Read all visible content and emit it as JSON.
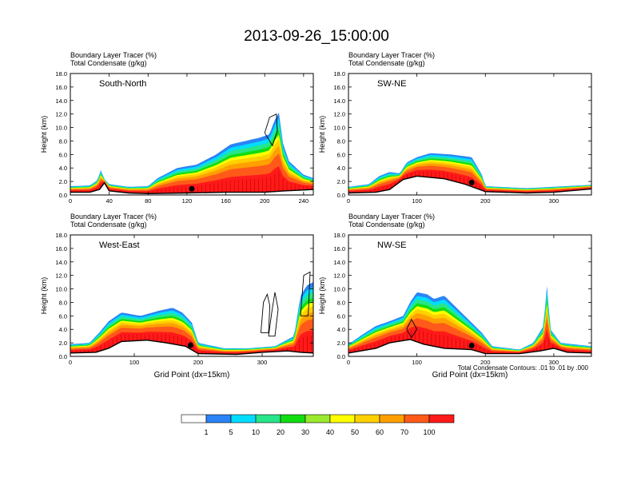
{
  "figure": {
    "title": "2013-09-26_15:00:00",
    "condensate_note": "Total Condensate Contours: .01 to .01 by .000"
  },
  "colors": {
    "scale": [
      "#ffffff",
      "#2b83f6",
      "#00ddff",
      "#27e68a",
      "#11dd11",
      "#9be92e",
      "#ffff00",
      "#ffd000",
      "#ffa000",
      "#ff5a1a",
      "#ff1a1a"
    ],
    "terrain": "#000000",
    "contour": "#000000"
  },
  "colorbar": {
    "labels": [
      "1",
      "5",
      "10",
      "20",
      "30",
      "40",
      "50",
      "60",
      "70",
      "100"
    ]
  },
  "chart_data": [
    {
      "type": "heatmap",
      "name": "South-North",
      "subtitle_left": "Boundary Layer Tracer   (%)",
      "subtitle_left2": "Total Condensate   (g/kg)",
      "ylabel": "Height (km)",
      "xlabel": "",
      "ylim": [
        0,
        18
      ],
      "yticks": [
        "0.0",
        "2.0",
        "4.0",
        "6.0",
        "8.0",
        "10.0",
        "12.0",
        "14.0",
        "16.0",
        "18.0"
      ],
      "xlim": [
        0,
        250
      ],
      "xticks": [
        "0",
        "40",
        "80",
        "120",
        "160",
        "200",
        "240"
      ],
      "terrain": [
        [
          0,
          0.4
        ],
        [
          20,
          0.4
        ],
        [
          30,
          0.8
        ],
        [
          35,
          1.8
        ],
        [
          40,
          0.6
        ],
        [
          60,
          0.3
        ],
        [
          80,
          0.2
        ],
        [
          120,
          0.3
        ],
        [
          160,
          0.4
        ],
        [
          200,
          0.4
        ],
        [
          220,
          0.6
        ],
        [
          250,
          0.8
        ]
      ],
      "cloud_top": [
        [
          0,
          1.3
        ],
        [
          20,
          1.4
        ],
        [
          28,
          2.2
        ],
        [
          32,
          4.0
        ],
        [
          34,
          2.5
        ],
        [
          40,
          1.6
        ],
        [
          60,
          1.2
        ],
        [
          80,
          1.3
        ],
        [
          90,
          2.5
        ],
        [
          110,
          4.0
        ],
        [
          130,
          4.5
        ],
        [
          150,
          6.0
        ],
        [
          165,
          7.5
        ],
        [
          180,
          8.0
        ],
        [
          195,
          8.5
        ],
        [
          205,
          9.0
        ],
        [
          210,
          11.0
        ],
        [
          215,
          12.3
        ],
        [
          218,
          8.0
        ],
        [
          225,
          5.0
        ],
        [
          240,
          3.0
        ],
        [
          250,
          2.5
        ]
      ],
      "marker_x": 125,
      "contours": [
        [
          [
            200,
            9.2
          ],
          [
            205,
            11.5
          ],
          [
            212,
            12.0
          ],
          [
            213,
            9.5
          ],
          [
            208,
            7.3
          ],
          [
            200,
            9.2
          ]
        ]
      ]
    },
    {
      "type": "heatmap",
      "name": "SW-NE",
      "subtitle_left": "Boundary Layer Tracer   (%)",
      "subtitle_left2": "Total Condensate   (g/kg)",
      "ylabel": "Height (km)",
      "xlabel": "",
      "ylim": [
        0,
        18
      ],
      "yticks": [
        "0.0",
        "2.0",
        "4.0",
        "6.0",
        "8.0",
        "10.0",
        "12.0",
        "14.0",
        "16.0",
        "18.0"
      ],
      "xlim": [
        0,
        355
      ],
      "xticks": [
        "0",
        "100",
        "200",
        "300"
      ],
      "terrain": [
        [
          0,
          0.3
        ],
        [
          40,
          0.4
        ],
        [
          60,
          0.8
        ],
        [
          80,
          2.3
        ],
        [
          100,
          2.8
        ],
        [
          140,
          2.4
        ],
        [
          170,
          1.6
        ],
        [
          200,
          0.5
        ],
        [
          260,
          0.3
        ],
        [
          300,
          0.4
        ],
        [
          355,
          0.9
        ]
      ],
      "cloud_top": [
        [
          0,
          1.2
        ],
        [
          30,
          1.6
        ],
        [
          45,
          2.8
        ],
        [
          60,
          3.4
        ],
        [
          75,
          3.2
        ],
        [
          85,
          4.8
        ],
        [
          100,
          5.6
        ],
        [
          120,
          6.2
        ],
        [
          150,
          6.0
        ],
        [
          180,
          5.6
        ],
        [
          195,
          3.0
        ],
        [
          200,
          1.3
        ],
        [
          260,
          1.0
        ],
        [
          355,
          1.5
        ]
      ],
      "marker_x": 180,
      "contours": []
    },
    {
      "type": "heatmap",
      "name": "West-East",
      "subtitle_left": "Boundary Layer Tracer   (%)",
      "subtitle_left2": "Total Condensate   (g/kg)",
      "ylabel": "Height (km)",
      "xlabel": "Grid Point (dx=15km)",
      "ylim": [
        0,
        18
      ],
      "yticks": [
        "0.0",
        "2.0",
        "4.0",
        "6.0",
        "8.0",
        "10.0",
        "12.0",
        "14.0",
        "16.0",
        "18.0"
      ],
      "xlim": [
        0,
        380
      ],
      "xticks": [
        "0",
        "100",
        "200",
        "300"
      ],
      "terrain": [
        [
          0,
          0.5
        ],
        [
          40,
          0.6
        ],
        [
          60,
          1.2
        ],
        [
          80,
          2.2
        ],
        [
          120,
          2.4
        ],
        [
          150,
          2.0
        ],
        [
          180,
          1.5
        ],
        [
          200,
          0.4
        ],
        [
          260,
          0.3
        ],
        [
          300,
          0.6
        ],
        [
          340,
          0.8
        ],
        [
          360,
          0.6
        ],
        [
          380,
          0.5
        ]
      ],
      "cloud_top": [
        [
          0,
          1.8
        ],
        [
          30,
          2.0
        ],
        [
          45,
          3.5
        ],
        [
          60,
          5.2
        ],
        [
          80,
          6.5
        ],
        [
          110,
          6.0
        ],
        [
          140,
          6.8
        ],
        [
          160,
          7.2
        ],
        [
          175,
          6.5
        ],
        [
          190,
          5.0
        ],
        [
          200,
          2.0
        ],
        [
          240,
          1.2
        ],
        [
          280,
          1.2
        ],
        [
          320,
          1.5
        ],
        [
          350,
          3.0
        ],
        [
          360,
          9.0
        ],
        [
          370,
          10.5
        ],
        [
          380,
          11.0
        ]
      ],
      "marker_x": 188,
      "contours": [
        [
          [
            298,
            3.5
          ],
          [
            302,
            8.0
          ],
          [
            308,
            9.2
          ],
          [
            312,
            7.5
          ],
          [
            310,
            3.5
          ],
          [
            298,
            3.5
          ]
        ],
        [
          [
            310,
            3.0
          ],
          [
            315,
            6.5
          ],
          [
            320,
            9.5
          ],
          [
            325,
            7.0
          ],
          [
            320,
            3.0
          ],
          [
            310,
            3.0
          ]
        ],
        [
          [
            360,
            6.0
          ],
          [
            365,
            12.0
          ],
          [
            375,
            12.5
          ],
          [
            372,
            6.0
          ],
          [
            360,
            6.0
          ]
        ]
      ]
    },
    {
      "type": "heatmap",
      "name": "NW-SE",
      "subtitle_left": "Boundary Layer Tracer   (%)",
      "subtitle_left2": "Total Condensate   (g/kg)",
      "ylabel": "Height (km)",
      "xlabel": "Grid Point (dx=15km)",
      "ylim": [
        0,
        18
      ],
      "yticks": [
        "0.0",
        "2.0",
        "4.0",
        "6.0",
        "8.0",
        "10.0",
        "12.0",
        "14.0",
        "16.0",
        "18.0"
      ],
      "xlim": [
        0,
        355
      ],
      "xticks": [
        "0",
        "100",
        "200",
        "300"
      ],
      "terrain": [
        [
          0,
          0.5
        ],
        [
          40,
          1.2
        ],
        [
          60,
          2.0
        ],
        [
          90,
          2.5
        ],
        [
          110,
          1.8
        ],
        [
          140,
          1.2
        ],
        [
          180,
          1.0
        ],
        [
          200,
          0.4
        ],
        [
          250,
          0.4
        ],
        [
          280,
          0.8
        ],
        [
          300,
          1.2
        ],
        [
          320,
          0.6
        ],
        [
          355,
          0.5
        ]
      ],
      "cloud_top": [
        [
          0,
          1.8
        ],
        [
          20,
          3.2
        ],
        [
          40,
          4.5
        ],
        [
          60,
          5.2
        ],
        [
          80,
          6.0
        ],
        [
          90,
          8.0
        ],
        [
          100,
          9.5
        ],
        [
          115,
          9.2
        ],
        [
          125,
          8.5
        ],
        [
          140,
          9.0
        ],
        [
          160,
          7.0
        ],
        [
          180,
          5.0
        ],
        [
          195,
          3.5
        ],
        [
          210,
          1.5
        ],
        [
          250,
          1.0
        ],
        [
          270,
          2.0
        ],
        [
          285,
          4.5
        ],
        [
          290,
          10.5
        ],
        [
          295,
          4.0
        ],
        [
          310,
          2.0
        ],
        [
          355,
          1.5
        ]
      ],
      "marker_x": 180,
      "contours": [
        [
          [
            85,
            4.0
          ],
          [
            92,
            5.5
          ],
          [
            100,
            4.0
          ],
          [
            92,
            2.8
          ],
          [
            85,
            4.0
          ]
        ]
      ]
    }
  ]
}
